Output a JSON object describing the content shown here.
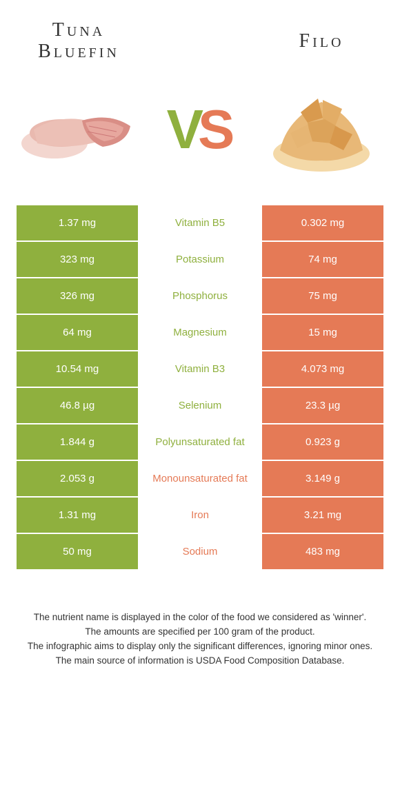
{
  "colors": {
    "left": "#8fb03e",
    "right": "#e57a56",
    "background": "#ffffff",
    "gap": "#ffffff"
  },
  "header": {
    "left_title": "Tuna Bluefin",
    "right_title": "Filo",
    "vs_v": "V",
    "vs_s": "S"
  },
  "images": {
    "left_alt": "tuna-bluefin",
    "right_alt": "filo-pastry"
  },
  "rows": [
    {
      "nutrient": "Vitamin B5",
      "left": "1.37 mg",
      "right": "0.302 mg",
      "winner": "left"
    },
    {
      "nutrient": "Potassium",
      "left": "323 mg",
      "right": "74 mg",
      "winner": "left"
    },
    {
      "nutrient": "Phosphorus",
      "left": "326 mg",
      "right": "75 mg",
      "winner": "left"
    },
    {
      "nutrient": "Magnesium",
      "left": "64 mg",
      "right": "15 mg",
      "winner": "left"
    },
    {
      "nutrient": "Vitamin B3",
      "left": "10.54 mg",
      "right": "4.073 mg",
      "winner": "left"
    },
    {
      "nutrient": "Selenium",
      "left": "46.8 µg",
      "right": "23.3 µg",
      "winner": "left"
    },
    {
      "nutrient": "Polyunsaturated fat",
      "left": "1.844 g",
      "right": "0.923 g",
      "winner": "left"
    },
    {
      "nutrient": "Monounsaturated fat",
      "left": "2.053 g",
      "right": "3.149 g",
      "winner": "right"
    },
    {
      "nutrient": "Iron",
      "left": "1.31 mg",
      "right": "3.21 mg",
      "winner": "right"
    },
    {
      "nutrient": "Sodium",
      "left": "50 mg",
      "right": "483 mg",
      "winner": "right"
    }
  ],
  "footer": {
    "line1": "The nutrient name is displayed in the color of the food we considered as 'winner'.",
    "line2": "The amounts are specified per 100 gram of the product.",
    "line3": "The infographic aims to display only the significant differences, ignoring minor ones.",
    "line4": "The main source of information is USDA Food Composition Database."
  }
}
